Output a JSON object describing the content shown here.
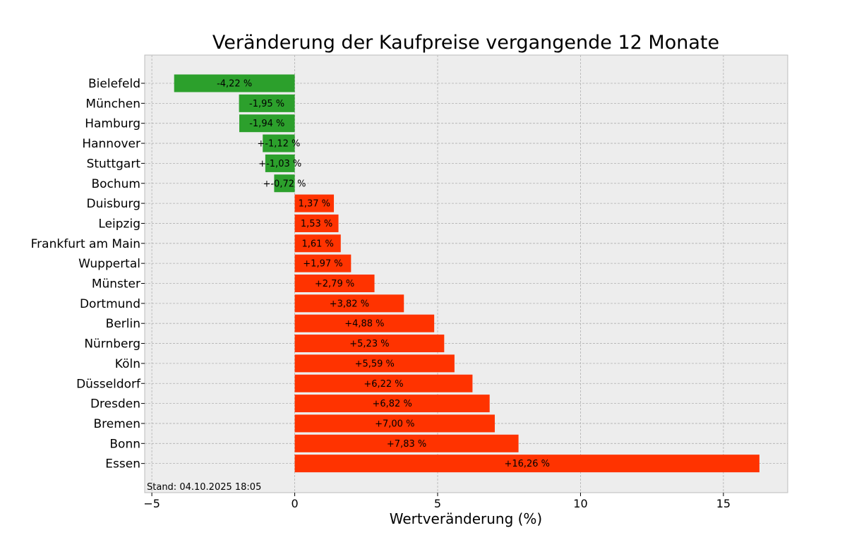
{
  "chart_data": {
    "type": "bar",
    "orientation": "horizontal",
    "title": "Veränderung der Kaufpreise vergangende 12 Monate",
    "xlabel": "Wertveränderung (%)",
    "ylabel": "",
    "xlim": [
      -5.25,
      17.25
    ],
    "xticks": [
      -5,
      0,
      5,
      10,
      15
    ],
    "xtick_labels": [
      "−5",
      "0",
      "5",
      "10",
      "15"
    ],
    "grid": true,
    "legend": "none",
    "colors": {
      "negative": "#2ca02c",
      "positive": "#ff3300",
      "background": "#ededed",
      "grid": "#b0b0b0"
    },
    "categories": [
      "Bielefeld",
      "München",
      "Hamburg",
      "Hannover",
      "Stuttgart",
      "Bochum",
      "Duisburg",
      "Leipzig",
      "Frankfurt am Main",
      "Wuppertal",
      "Münster",
      "Dortmund",
      "Berlin",
      "Nürnberg",
      "Köln",
      "Düsseldorf",
      "Dresden",
      "Bremen",
      "Bonn",
      "Essen"
    ],
    "values": [
      -4.22,
      -1.95,
      -1.94,
      -1.12,
      -1.03,
      -0.72,
      1.37,
      1.53,
      1.61,
      1.97,
      2.79,
      3.82,
      4.88,
      5.23,
      5.59,
      6.22,
      6.82,
      7.0,
      7.83,
      16.26
    ],
    "data_labels": [
      "-4,22 %",
      "-1,95 %",
      "-1,94 %",
      "+-1,12 %",
      "+-1,03 %",
      "+-0,72 %",
      "1,37 %",
      "1,53 %",
      "1,61 %",
      "+1,97 %",
      "+2,79 %",
      "+3,82 %",
      "+4,88 %",
      "+5,23 %",
      "+5,59 %",
      "+6,22 %",
      "+6,82 %",
      "+7,00 %",
      "+7,83 %",
      "+16,26 %"
    ],
    "footnote": "Stand: 04.10.2025 18:05"
  }
}
